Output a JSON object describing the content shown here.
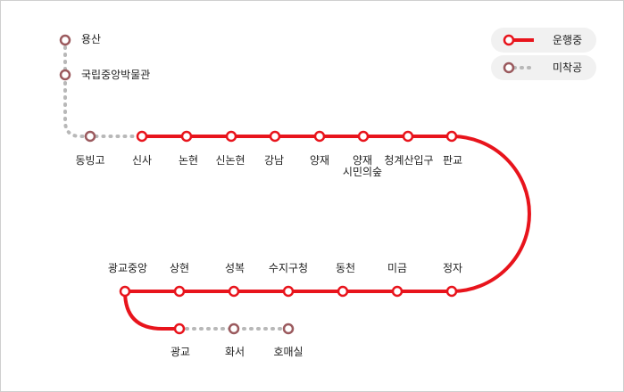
{
  "colors": {
    "active_line": "#e8141c",
    "planned_line": "#b8b8b8",
    "planned_station": "#9b5a5e"
  },
  "legend": {
    "operating": "운행중",
    "unbuilt": "미착공"
  },
  "stations": {
    "yongsan": "용산",
    "national_museum": "국립중앙박물관",
    "dongbinggo": "동빙고",
    "sinsa": "신사",
    "nonhyeon": "논현",
    "sinnonhyeon": "신논현",
    "gangnam": "강남",
    "yangjae": "양재",
    "yangjae_forest_l1": "양재",
    "yangjae_forest_l2": "시민의숲",
    "cheonggyesan": "청계산입구",
    "pangyo": "판교",
    "jeongja": "정자",
    "migeum": "미금",
    "dongcheon": "동천",
    "suji": "수지구청",
    "seongbuk": "성복",
    "sanghyeon": "상현",
    "gwanggyo_jungang": "광교중앙",
    "gwanggyo": "광교",
    "hwaseo": "화서",
    "homaesil": "호매실"
  }
}
